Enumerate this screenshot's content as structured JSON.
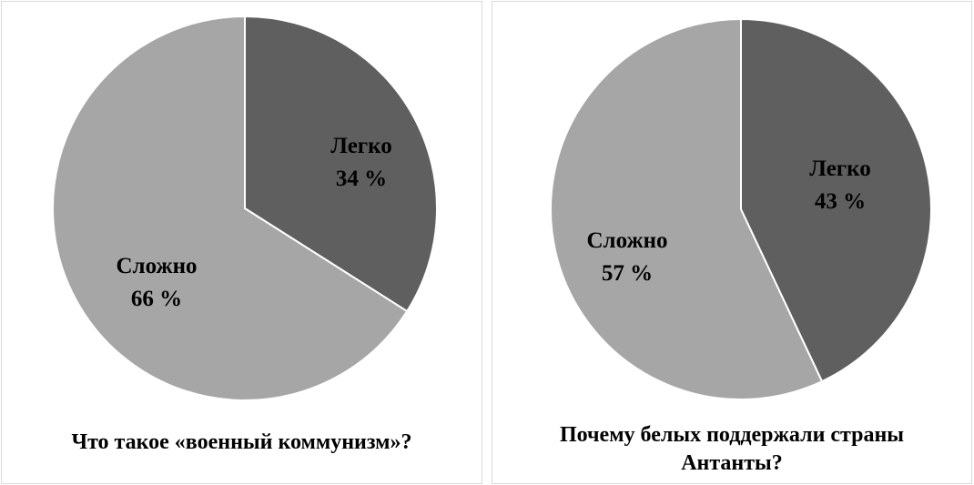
{
  "chart_data": [
    {
      "type": "pie",
      "title": "Что такое «военный коммунизм»?",
      "slices": [
        {
          "label": "Легко",
          "value": 34,
          "value_label": "34 %",
          "color": "#5f5f5f"
        },
        {
          "label": "Сложно",
          "value": 66,
          "value_label": "66 %",
          "color": "#a6a6a6"
        }
      ]
    },
    {
      "type": "pie",
      "title": "Почему белых поддержали страны Антанты?",
      "slices": [
        {
          "label": "Легко",
          "value": 43,
          "value_label": "43 %",
          "color": "#5f5f5f"
        },
        {
          "label": "Сложно",
          "value": 57,
          "value_label": "57 %",
          "color": "#a6a6a6"
        }
      ]
    }
  ],
  "colors": {
    "edge": "#ffffff",
    "panel_border": "#d9d9d9"
  }
}
